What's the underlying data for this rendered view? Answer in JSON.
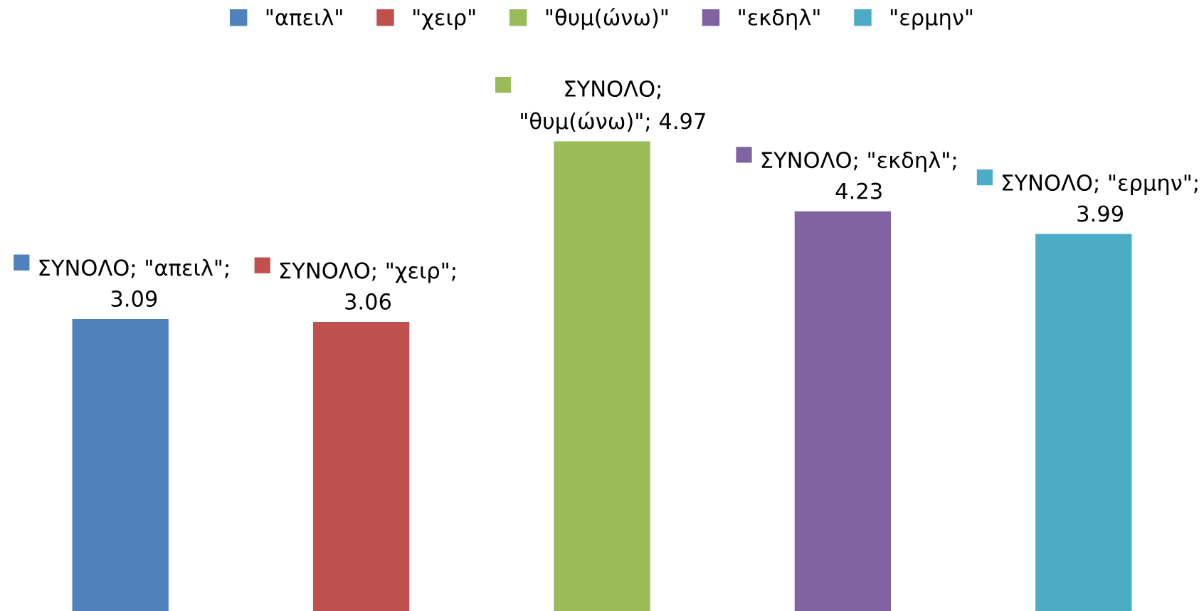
{
  "chart_data": {
    "type": "bar",
    "categories": [
      null,
      null,
      null,
      null,
      null
    ],
    "stacked": true,
    "legend": "top",
    "series": [
      {
        "name": "\"απειλ\"",
        "color": "#4f81bd",
        "values": [
          3.09,
          null,
          null,
          null,
          null
        ],
        "value_labels": [
          "ΣΥΝΟΛΟ; \"απειλ\";\n3.09",
          null,
          null,
          null,
          null
        ]
      },
      {
        "name": "\"χειρ\"",
        "color": "#c0504d",
        "values": [
          null,
          3.06,
          null,
          null,
          null
        ],
        "value_labels": [
          null,
          "ΣΥΝΟΛΟ; \"χειρ\";\n3.06",
          null,
          null,
          null
        ]
      },
      {
        "name": "\"θυμ(ώνω)\"",
        "color": "#9bbb59",
        "values": [
          null,
          null,
          4.97,
          null,
          null
        ],
        "value_labels": [
          null,
          null,
          "ΣΥΝΟΛΟ;\n\"θυμ(ώνω)\"; 4.97",
          null,
          null
        ]
      },
      {
        "name": "\"εκδηλ\"",
        "color": "#8064a2",
        "values": [
          null,
          null,
          null,
          4.23,
          null
        ],
        "value_labels": [
          null,
          null,
          null,
          "ΣΥΝΟΛΟ; \"εκδηλ\";\n4.23",
          null
        ]
      },
      {
        "name": "\"ερμην\"",
        "color": "#4bacc6",
        "values": [
          null,
          null,
          null,
          null,
          3.99
        ],
        "value_labels": [
          null,
          null,
          null,
          null,
          "ΣΥΝΟΛΟ; \"ερμην\";\n3.99"
        ]
      }
    ]
  }
}
